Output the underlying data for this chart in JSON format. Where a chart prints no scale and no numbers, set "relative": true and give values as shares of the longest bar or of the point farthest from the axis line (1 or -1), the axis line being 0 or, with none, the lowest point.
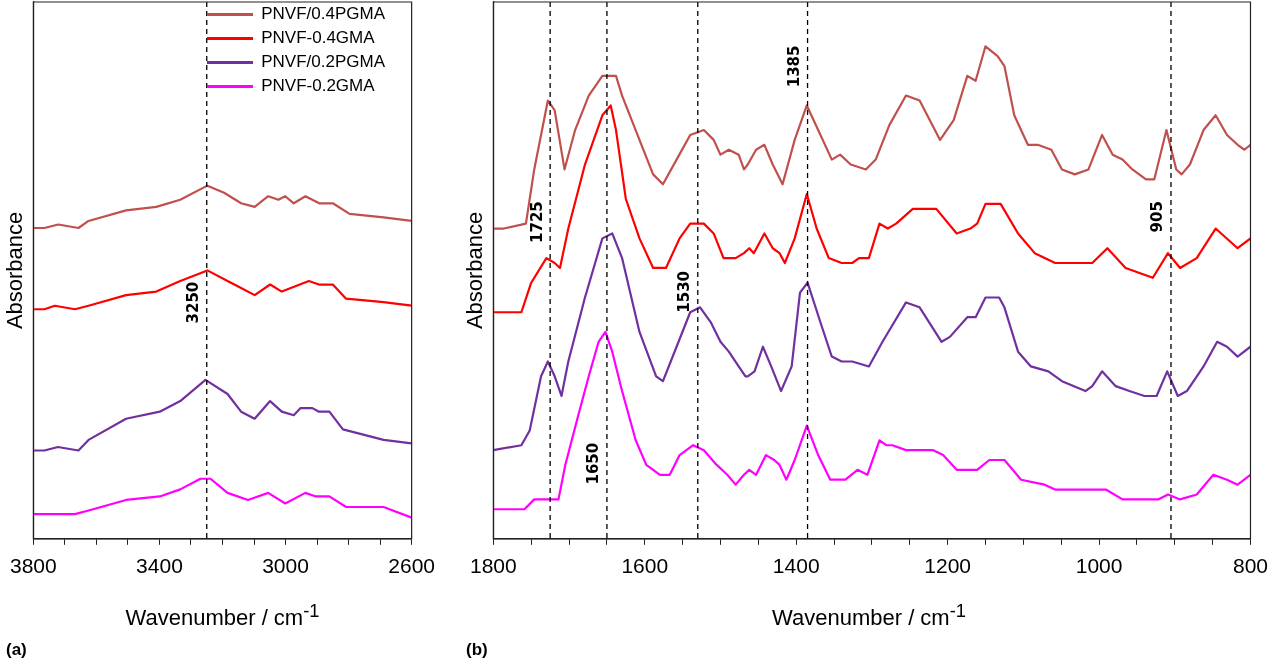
{
  "chart_data": [
    {
      "type": "line",
      "xlabel": "Wavenumber / cm$^{-1}$",
      "ylabel": "Absorbance",
      "relative": true,
      "legend": "top right",
      "line_style": "solid",
      "annotations": [
        "(a)"
      ],
      "xlim": [
        3800,
        2600
      ],
      "xticks": [
        3800,
        {
          "value": 3700,
          "label": null
        },
        {
          "value": 3600,
          "label": null
        },
        {
          "value": 3500,
          "label": null
        },
        3400,
        {
          "value": 3300,
          "label": null
        },
        {
          "value": 3200,
          "label": null
        },
        {
          "value": 3100,
          "label": null
        },
        3000,
        {
          "value": 2900,
          "label": null
        },
        {
          "value": 2800,
          "label": null
        },
        {
          "value": 2700,
          "label": null
        },
        2600
      ],
      "ref_lines": [
        {
          "axis": "x",
          "value": 3250,
          "label": "3250",
          "line_style": "dashed",
          "color": "#000000"
        }
      ],
      "series": [
        {
          "name": "PNVF/0.4PGMA",
          "color": "#c0504d",
          "x": [
            3800,
            3765,
            3721,
            3657,
            3625,
            3506,
            3410,
            3334,
            3248,
            3195,
            3141,
            3098,
            3055,
            3023,
            3001,
            2974,
            2937,
            2893,
            2850,
            2797,
            2689,
            2600
          ],
          "values": [
            0.88,
            0.88,
            0.89,
            0.88,
            0.9,
            0.93,
            0.94,
            0.96,
            1.0,
            0.98,
            0.95,
            0.94,
            0.97,
            0.96,
            0.97,
            0.95,
            0.97,
            0.95,
            0.95,
            0.92,
            0.91,
            0.9
          ]
        },
        {
          "name": "PNVF-0.4GMA",
          "color": "#ff0000",
          "x": [
            3800,
            3765,
            3732,
            3668,
            3625,
            3506,
            3410,
            3334,
            3248,
            3184,
            3141,
            3098,
            3049,
            3012,
            2926,
            2894,
            2850,
            2808,
            2689,
            2600
          ],
          "values": [
            0.65,
            0.65,
            0.66,
            0.65,
            0.66,
            0.69,
            0.7,
            0.73,
            0.76,
            0.73,
            0.71,
            0.69,
            0.72,
            0.7,
            0.73,
            0.72,
            0.72,
            0.68,
            0.67,
            0.66
          ]
        },
        {
          "name": "PNVF/0.2PGMA",
          "color": "#7030a0",
          "x": [
            3800,
            3765,
            3722,
            3657,
            3625,
            3506,
            3399,
            3334,
            3254,
            3184,
            3141,
            3098,
            3049,
            3012,
            2974,
            2953,
            2915,
            2894,
            2861,
            2818,
            2689,
            2600
          ],
          "values": [
            0.25,
            0.25,
            0.26,
            0.25,
            0.28,
            0.34,
            0.36,
            0.39,
            0.45,
            0.41,
            0.36,
            0.34,
            0.39,
            0.36,
            0.35,
            0.37,
            0.37,
            0.36,
            0.36,
            0.31,
            0.28,
            0.27
          ]
        },
        {
          "name": "PNVF-0.2GMA",
          "color": "#ff00ff",
          "x": [
            3800,
            3765,
            3668,
            3625,
            3506,
            3399,
            3334,
            3270,
            3238,
            3184,
            3119,
            3055,
            3001,
            2937,
            2904,
            2861,
            2808,
            2689,
            2600
          ],
          "values": [
            0.07,
            0.07,
            0.07,
            0.08,
            0.11,
            0.12,
            0.14,
            0.17,
            0.17,
            0.13,
            0.11,
            0.13,
            0.1,
            0.13,
            0.12,
            0.12,
            0.09,
            0.09,
            0.06
          ]
        }
      ]
    },
    {
      "type": "line",
      "xlabel": "Wavenumber / cm$^{-1}$",
      "ylabel": "Absorbance",
      "relative": true,
      "line_style": "solid",
      "annotations": [
        "(b)"
      ],
      "xlim": [
        1800,
        800
      ],
      "xticks": [
        1800,
        {
          "value": 1750,
          "label": null
        },
        {
          "value": 1700,
          "label": null
        },
        {
          "value": 1650,
          "label": null
        },
        1600,
        {
          "value": 1550,
          "label": null
        },
        {
          "value": 1500,
          "label": null
        },
        {
          "value": 1450,
          "label": null
        },
        1400,
        {
          "value": 1350,
          "label": null
        },
        {
          "value": 1300,
          "label": null
        },
        {
          "value": 1250,
          "label": null
        },
        1200,
        {
          "value": 1150,
          "label": null
        },
        {
          "value": 1100,
          "label": null
        },
        {
          "value": 1050,
          "label": null
        },
        1000,
        {
          "value": 950,
          "label": null
        },
        {
          "value": 900,
          "label": null
        },
        {
          "value": 850,
          "label": null
        },
        800
      ],
      "ref_lines": [
        {
          "axis": "x",
          "value": 1725,
          "label": "1725",
          "line_style": "dashed",
          "color": "#000000"
        },
        {
          "axis": "x",
          "value": 1650,
          "label": "1650",
          "line_style": "dashed",
          "color": "#000000"
        },
        {
          "axis": "x",
          "value": 1530,
          "label": "1530",
          "line_style": "dashed",
          "color": "#000000"
        },
        {
          "axis": "x",
          "value": 1385,
          "label": "1385",
          "line_style": "dashed",
          "color": "#000000"
        },
        {
          "axis": "x",
          "value": 905,
          "label": "905",
          "line_style": "dashed",
          "color": "#000000"
        }
      ],
      "series": [
        {
          "color": "#c0504d",
          "x": [
            1800,
            1786,
            1757,
            1746,
            1728,
            1719,
            1706,
            1692,
            1674,
            1656,
            1638,
            1630,
            1607,
            1589,
            1576,
            1558,
            1540,
            1522,
            1509,
            1500,
            1489,
            1476,
            1469,
            1464,
            1453,
            1442,
            1431,
            1418,
            1402,
            1386,
            1371,
            1353,
            1342,
            1328,
            1308,
            1295,
            1277,
            1255,
            1237,
            1210,
            1192,
            1174,
            1163,
            1150,
            1134,
            1125,
            1112,
            1094,
            1081,
            1063,
            1049,
            1032,
            1014,
            996,
            982,
            969,
            956,
            938,
            927,
            911,
            898,
            891,
            880,
            862,
            846,
            831,
            817,
            808,
            800
          ],
          "values": [
            0.63,
            0.63,
            0.64,
            0.75,
            0.89,
            0.87,
            0.75,
            0.83,
            0.9,
            0.94,
            0.94,
            0.9,
            0.81,
            0.74,
            0.72,
            0.77,
            0.82,
            0.83,
            0.81,
            0.78,
            0.79,
            0.78,
            0.75,
            0.76,
            0.79,
            0.8,
            0.76,
            0.72,
            0.81,
            0.88,
            0.83,
            0.77,
            0.78,
            0.76,
            0.75,
            0.77,
            0.84,
            0.9,
            0.89,
            0.81,
            0.85,
            0.94,
            0.93,
            1.0,
            0.98,
            0.96,
            0.86,
            0.8,
            0.8,
            0.79,
            0.75,
            0.74,
            0.75,
            0.82,
            0.78,
            0.77,
            0.75,
            0.73,
            0.73,
            0.83,
            0.75,
            0.74,
            0.76,
            0.83,
            0.86,
            0.82,
            0.8,
            0.79,
            0.8
          ]
        },
        {
          "color": "#ff0000",
          "x": [
            1800,
            1763,
            1750,
            1730,
            1719,
            1712,
            1701,
            1679,
            1656,
            1645,
            1638,
            1625,
            1607,
            1589,
            1572,
            1554,
            1540,
            1522,
            1509,
            1496,
            1480,
            1469,
            1462,
            1456,
            1442,
            1431,
            1422,
            1415,
            1402,
            1386,
            1373,
            1357,
            1340,
            1326,
            1317,
            1304,
            1290,
            1279,
            1268,
            1246,
            1223,
            1215,
            1188,
            1170,
            1161,
            1150,
            1130,
            1107,
            1085,
            1058,
            1036,
            1009,
            989,
            965,
            929,
            909,
            893,
            871,
            846,
            817,
            800
          ],
          "values": [
            0.46,
            0.46,
            0.52,
            0.57,
            0.56,
            0.55,
            0.63,
            0.76,
            0.86,
            0.88,
            0.83,
            0.69,
            0.61,
            0.55,
            0.55,
            0.61,
            0.64,
            0.64,
            0.62,
            0.57,
            0.57,
            0.58,
            0.59,
            0.58,
            0.62,
            0.59,
            0.58,
            0.56,
            0.61,
            0.7,
            0.63,
            0.57,
            0.56,
            0.56,
            0.57,
            0.57,
            0.64,
            0.63,
            0.64,
            0.67,
            0.67,
            0.67,
            0.62,
            0.63,
            0.64,
            0.68,
            0.68,
            0.62,
            0.58,
            0.56,
            0.56,
            0.56,
            0.59,
            0.55,
            0.53,
            0.58,
            0.55,
            0.57,
            0.63,
            0.59,
            0.61
          ]
        },
        {
          "color": "#7030a0",
          "x": [
            1800,
            1763,
            1752,
            1737,
            1728,
            1719,
            1710,
            1701,
            1679,
            1656,
            1643,
            1630,
            1607,
            1585,
            1576,
            1558,
            1540,
            1527,
            1513,
            1500,
            1489,
            1476,
            1467,
            1464,
            1455,
            1444,
            1433,
            1420,
            1406,
            1395,
            1385,
            1366,
            1353,
            1340,
            1326,
            1304,
            1286,
            1255,
            1237,
            1208,
            1197,
            1174,
            1163,
            1150,
            1132,
            1125,
            1107,
            1090,
            1067,
            1049,
            1018,
            1009,
            996,
            978,
            960,
            940,
            924,
            910,
            896,
            884,
            862,
            844,
            831,
            817,
            800
          ],
          "values": [
            0.18,
            0.19,
            0.22,
            0.33,
            0.36,
            0.33,
            0.29,
            0.36,
            0.49,
            0.61,
            0.62,
            0.57,
            0.42,
            0.33,
            0.32,
            0.39,
            0.46,
            0.47,
            0.44,
            0.4,
            0.38,
            0.35,
            0.33,
            0.33,
            0.34,
            0.39,
            0.35,
            0.3,
            0.35,
            0.5,
            0.52,
            0.43,
            0.37,
            0.36,
            0.36,
            0.35,
            0.4,
            0.48,
            0.47,
            0.4,
            0.41,
            0.45,
            0.45,
            0.49,
            0.49,
            0.47,
            0.38,
            0.35,
            0.34,
            0.32,
            0.3,
            0.31,
            0.34,
            0.31,
            0.3,
            0.29,
            0.29,
            0.34,
            0.29,
            0.3,
            0.35,
            0.4,
            0.39,
            0.37,
            0.39
          ]
        },
        {
          "color": "#ff00ff",
          "x": [
            1800,
            1759,
            1746,
            1734,
            1714,
            1705,
            1688,
            1674,
            1661,
            1652,
            1643,
            1630,
            1612,
            1598,
            1580,
            1567,
            1554,
            1536,
            1522,
            1505,
            1491,
            1480,
            1469,
            1462,
            1453,
            1440,
            1429,
            1422,
            1413,
            1402,
            1386,
            1371,
            1355,
            1335,
            1319,
            1306,
            1290,
            1281,
            1273,
            1255,
            1219,
            1206,
            1188,
            1170,
            1161,
            1145,
            1125,
            1103,
            1072,
            1058,
            1014,
            1005,
            991,
            969,
            938,
            922,
            909,
            893,
            871,
            849,
            831,
            817,
            800
          ],
          "values": [
            0.06,
            0.06,
            0.08,
            0.08,
            0.08,
            0.15,
            0.25,
            0.33,
            0.4,
            0.42,
            0.38,
            0.3,
            0.2,
            0.15,
            0.13,
            0.13,
            0.17,
            0.19,
            0.18,
            0.15,
            0.13,
            0.11,
            0.13,
            0.14,
            0.13,
            0.17,
            0.16,
            0.15,
            0.12,
            0.16,
            0.23,
            0.17,
            0.12,
            0.12,
            0.14,
            0.13,
            0.2,
            0.19,
            0.19,
            0.18,
            0.18,
            0.17,
            0.14,
            0.14,
            0.14,
            0.16,
            0.16,
            0.12,
            0.11,
            0.1,
            0.1,
            0.1,
            0.1,
            0.08,
            0.08,
            0.08,
            0.09,
            0.08,
            0.09,
            0.13,
            0.12,
            0.11,
            0.13
          ]
        }
      ]
    }
  ]
}
